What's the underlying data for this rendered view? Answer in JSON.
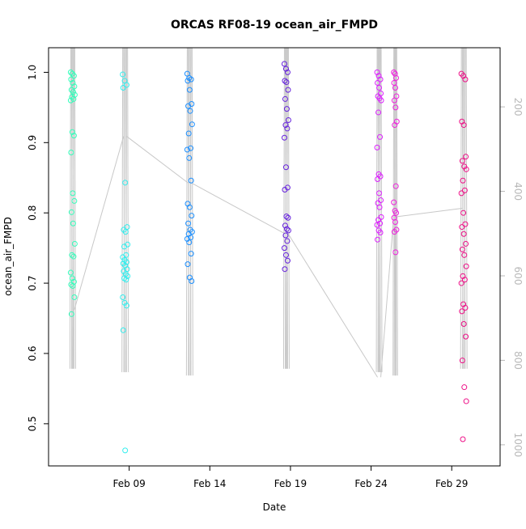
{
  "chart_data": {
    "type": "scatter",
    "title": "ORCAS RF08-19 ocean_air_FMPD",
    "xlabel": "Date",
    "ylabel": "ocean_air_FMPD",
    "xlim": [
      "2016-02-04",
      "2016-03-03"
    ],
    "ylim": [
      0.44,
      1.035
    ],
    "x_ticks": [
      {
        "date": "2016-02-09",
        "label": "Feb 09"
      },
      {
        "date": "2016-02-14",
        "label": "Feb 14"
      },
      {
        "date": "2016-02-19",
        "label": "Feb 19"
      },
      {
        "date": "2016-02-24",
        "label": "Feb 24"
      },
      {
        "date": "2016-02-29",
        "label": "Feb 29"
      }
    ],
    "y_ticks": [
      "0.5",
      "0.6",
      "0.7",
      "0.8",
      "0.9",
      "1.0"
    ],
    "right_axis": {
      "ticks": [
        "200",
        "400",
        "600",
        "800",
        "1000"
      ],
      "ylim": [
        1050,
        60
      ],
      "color": "#b8b8b8"
    },
    "altitude_trace_color": "#c8c8c8",
    "flights": [
      {
        "date": "2016-02-05 12:00",
        "color": "#33ffbb",
        "spread": 0.25,
        "values": [
          1.0,
          0.998,
          0.995,
          0.99,
          0.985,
          0.98,
          0.975,
          0.972,
          0.968,
          0.965,
          0.962,
          0.96,
          0.915,
          0.91,
          0.886,
          0.828,
          0.817,
          0.801,
          0.785,
          0.756,
          0.74,
          0.738,
          0.715,
          0.707,
          0.702,
          0.698,
          0.696,
          0.68,
          0.656
        ]
      },
      {
        "date": "2016-02-08 18:00",
        "color": "#33eeee",
        "spread": 0.3,
        "values": [
          0.997,
          0.988,
          0.982,
          0.978,
          0.843,
          0.78,
          0.776,
          0.773,
          0.755,
          0.752,
          0.74,
          0.737,
          0.733,
          0.73,
          0.728,
          0.725,
          0.72,
          0.717,
          0.713,
          0.71,
          0.707,
          0.705,
          0.68,
          0.672,
          0.668,
          0.633,
          0.462
        ]
      },
      {
        "date": "2016-02-12 18:00",
        "color": "#1e90ff",
        "spread": 0.3,
        "values": [
          0.998,
          0.992,
          0.99,
          0.988,
          0.975,
          0.955,
          0.952,
          0.945,
          0.926,
          0.913,
          0.892,
          0.89,
          0.878,
          0.846,
          0.813,
          0.808,
          0.796,
          0.785,
          0.776,
          0.773,
          0.77,
          0.765,
          0.763,
          0.758,
          0.742,
          0.727,
          0.708,
          0.703
        ]
      },
      {
        "date": "2016-02-18 18:00",
        "color": "#6622dd",
        "spread": 0.25,
        "values": [
          1.012,
          1.005,
          1.0,
          0.988,
          0.986,
          0.975,
          0.962,
          0.948,
          0.932,
          0.925,
          0.92,
          0.907,
          0.865,
          0.836,
          0.833,
          0.795,
          0.793,
          0.782,
          0.777,
          0.775,
          0.768,
          0.76,
          0.75,
          0.74,
          0.732,
          0.72
        ]
      },
      {
        "date": "2016-02-24 12:00",
        "color": "#dd22ff",
        "spread": 0.25,
        "values": [
          1.0,
          0.995,
          0.99,
          0.985,
          0.978,
          0.97,
          0.966,
          0.963,
          0.96,
          0.943,
          0.908,
          0.893,
          0.855,
          0.852,
          0.848,
          0.828,
          0.818,
          0.814,
          0.808,
          0.794,
          0.79,
          0.785,
          0.783,
          0.775,
          0.772,
          0.762
        ]
      },
      {
        "date": "2016-02-25 12:00",
        "color": "#ee22dd",
        "spread": 0.18,
        "values": [
          1.0,
          0.998,
          0.992,
          0.985,
          0.978,
          0.966,
          0.96,
          0.95,
          0.93,
          0.925,
          0.838,
          0.815,
          0.803,
          0.8,
          0.793,
          0.787,
          0.776,
          0.773,
          0.744
        ]
      },
      {
        "date": "2016-02-29 18:00",
        "color": "#ee1188",
        "spread": 0.3,
        "values": [
          0.998,
          0.995,
          0.99,
          0.93,
          0.925,
          0.88,
          0.874,
          0.866,
          0.862,
          0.846,
          0.832,
          0.828,
          0.8,
          0.784,
          0.78,
          0.77,
          0.756,
          0.748,
          0.74,
          0.724,
          0.71,
          0.705,
          0.7,
          0.67,
          0.665,
          0.66,
          0.642,
          0.624,
          0.59,
          0.552,
          0.532,
          0.478
        ]
      }
    ]
  }
}
